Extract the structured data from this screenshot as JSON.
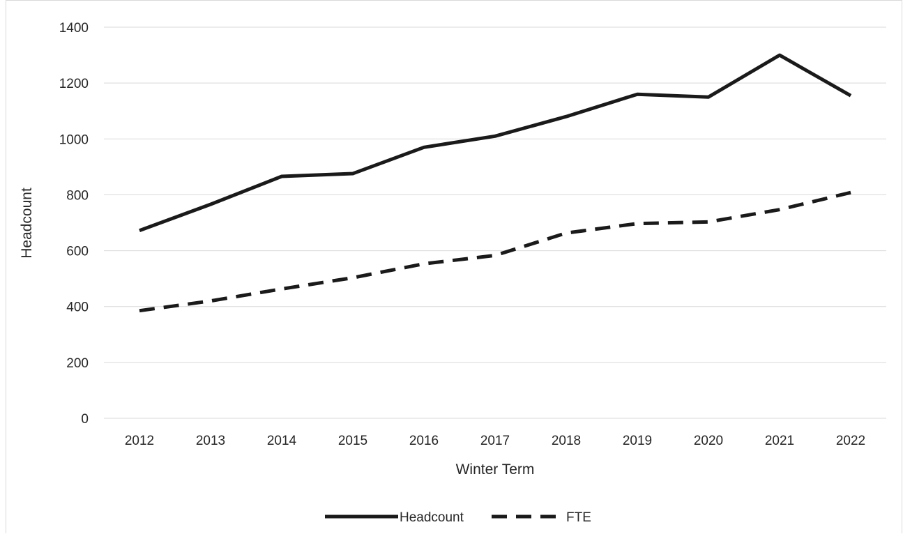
{
  "chart_data": {
    "type": "line",
    "title": "",
    "xlabel": "Winter Term",
    "ylabel": "Headcount",
    "categories": [
      "2012",
      "2013",
      "2014",
      "2015",
      "2016",
      "2017",
      "2018",
      "2019",
      "2020",
      "2021",
      "2022"
    ],
    "yticks": [
      "0",
      "200",
      "400",
      "600",
      "800",
      "1000",
      "1200",
      "1400"
    ],
    "ylim": [
      0,
      1400
    ],
    "grid": true,
    "legend_position": "bottom",
    "series": [
      {
        "name": "Headcount",
        "style": "solid",
        "color": "#1a1a1a",
        "values": [
          672,
          766,
          866,
          876,
          970,
          1010,
          1080,
          1160,
          1150,
          1300,
          1155
        ]
      },
      {
        "name": "FTE",
        "style": "dashed",
        "color": "#1a1a1a",
        "values": [
          385,
          420,
          463,
          503,
          553,
          583,
          663,
          697,
          703,
          747,
          808
        ]
      }
    ]
  }
}
